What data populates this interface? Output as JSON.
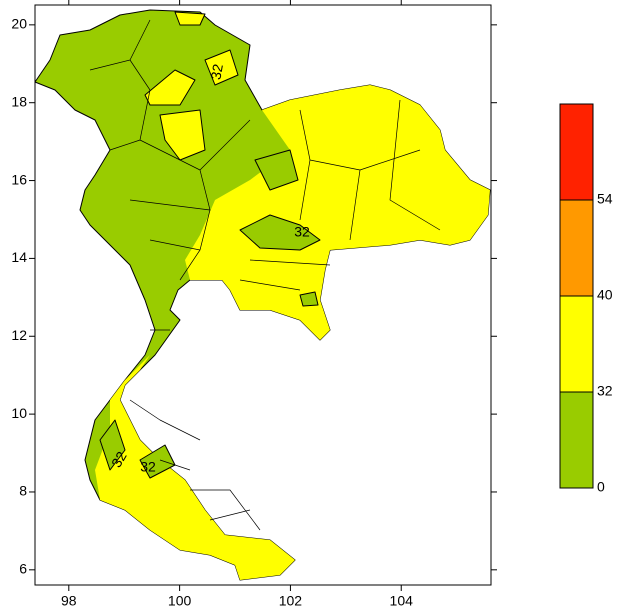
{
  "map": {
    "xlim": [
      97.39,
      105.62
    ],
    "ylim": [
      5.61,
      20.51
    ],
    "xticks": [
      98,
      100,
      102,
      104
    ],
    "yticks": [
      6,
      8,
      10,
      12,
      14,
      16,
      18,
      20
    ],
    "contour_labels": [
      32,
      32,
      32,
      32
    ]
  },
  "colorbar": {
    "levels": [
      0,
      32,
      40,
      54
    ],
    "colors": [
      "#99cc00",
      "#ffff00",
      "#ff9900",
      "#ff2200"
    ]
  }
}
